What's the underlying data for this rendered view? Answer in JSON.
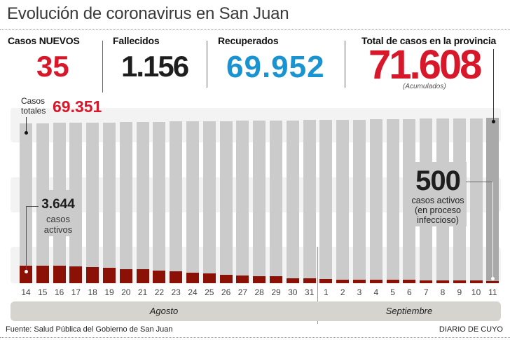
{
  "title": "Evolución de coronavirus en San Juan",
  "stats": [
    {
      "label": "Casos NUEVOS",
      "value": "35",
      "color": "#d7182a"
    },
    {
      "label": "Fallecidos",
      "value": "1.156",
      "color": "#1e1e1e"
    },
    {
      "label": "Recuperados",
      "value": "69.952",
      "color": "#1a93d1"
    },
    {
      "label": "Total de casos en la provincia",
      "value": "71.608",
      "color": "#d7182a",
      "note": "(Acumulados)"
    }
  ],
  "annotations": {
    "total_label_line1": "Casos",
    "total_label_line2": "totales",
    "total_value": "69.351",
    "active_start_value": "3.644",
    "active_start_line1": "casos",
    "active_start_line2": "activos",
    "active_end_value": "500",
    "active_end_line1": "casos activos",
    "active_end_line2": "(en proceso",
    "active_end_line3": "infeccioso)"
  },
  "colors": {
    "accent_red": "#d7182a",
    "accent_blue": "#1a93d1",
    "total_bar": "#cbcbcb",
    "total_bar_latest": "#a9a9a9",
    "active_bar": "#8b1106",
    "month_band": "#d6d4ce"
  },
  "chart_data": {
    "type": "bar",
    "title": "Evolución de coronavirus en San Juan",
    "xlabel": "",
    "ylabel": "",
    "categories": [
      "14",
      "15",
      "16",
      "17",
      "18",
      "19",
      "20",
      "21",
      "22",
      "23",
      "24",
      "25",
      "26",
      "27",
      "28",
      "29",
      "30",
      "31",
      "1",
      "2",
      "3",
      "4",
      "5",
      "6",
      "7",
      "8",
      "9",
      "10",
      "11"
    ],
    "month_groups": [
      {
        "label": "Agosto",
        "from": "14",
        "to": "31"
      },
      {
        "label": "Septiembre",
        "from": "1",
        "to": "11"
      }
    ],
    "series": [
      {
        "name": "Casos totales",
        "values": [
          69351,
          69430,
          69510,
          69590,
          69670,
          69750,
          69830,
          69910,
          69990,
          70080,
          70160,
          70240,
          70320,
          70400,
          70480,
          70560,
          70640,
          70720,
          70800,
          70880,
          70960,
          71040,
          71120,
          71200,
          71290,
          71370,
          71450,
          71530,
          71608
        ]
      },
      {
        "name": "Casos activos",
        "values": [
          3644,
          3640,
          3640,
          3500,
          3400,
          3250,
          2950,
          2950,
          2700,
          2460,
          2170,
          2020,
          1730,
          1580,
          1430,
          1430,
          990,
          990,
          840,
          750,
          750,
          750,
          800,
          750,
          590,
          590,
          590,
          640,
          500
        ]
      }
    ],
    "ylim": [
      0,
      72000
    ],
    "grid": false,
    "legend": "none"
  },
  "footer": {
    "source": "Fuente: Salud Pública del Gobierno de San Juan",
    "brand": "DIARIO DE CUYO"
  }
}
